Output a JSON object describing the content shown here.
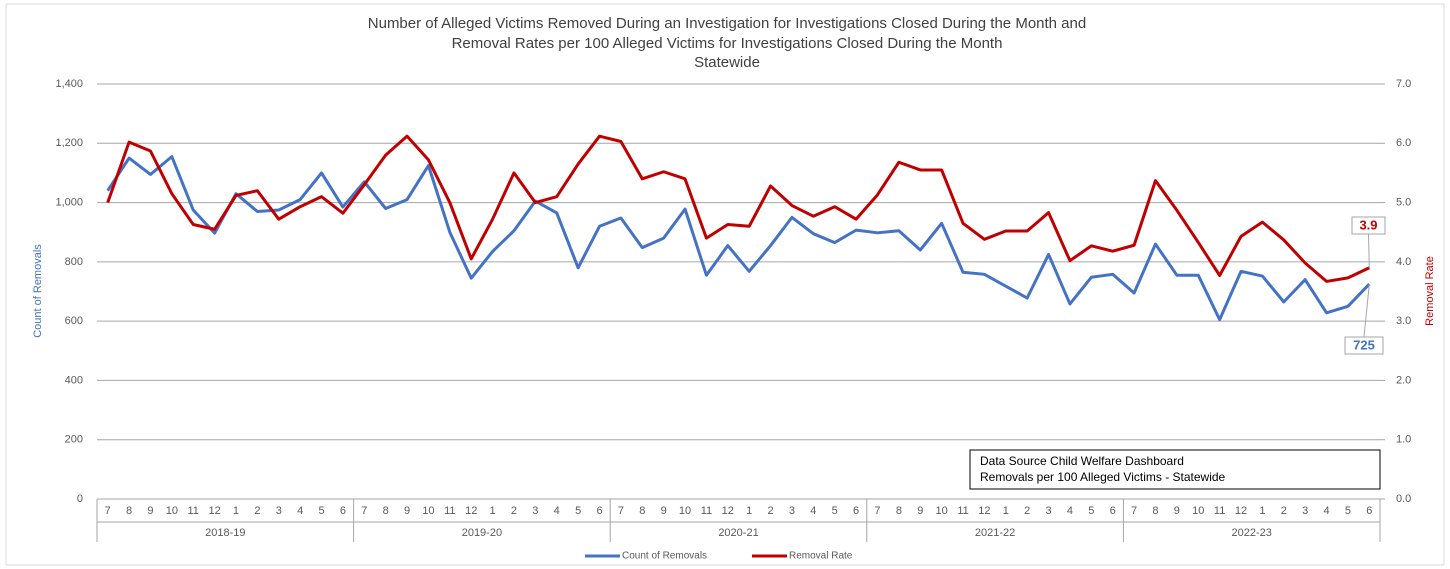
{
  "chart_data": {
    "type": "line",
    "title": [
      "Number of Alleged Victims Removed During an Investigation for Investigations Closed During the Month and",
      "Removal Rates per 100 Alleged Victims for Investigations Closed During the Month",
      "Statewide"
    ],
    "y_label": "Count of Removals",
    "y2_label": "Removal Rate",
    "categories": [
      "7",
      "8",
      "9",
      "10",
      "11",
      "12",
      "1",
      "2",
      "3",
      "4",
      "5",
      "6",
      "7",
      "8",
      "9",
      "10",
      "11",
      "12",
      "1",
      "2",
      "3",
      "4",
      "5",
      "6",
      "7",
      "8",
      "9",
      "10",
      "11",
      "12",
      "1",
      "2",
      "3",
      "4",
      "5",
      "6",
      "7",
      "8",
      "9",
      "10",
      "11",
      "12",
      "1",
      "2",
      "3",
      "4",
      "5",
      "6",
      "7",
      "8",
      "9",
      "10",
      "11",
      "12",
      "1",
      "2",
      "3",
      "4",
      "5",
      "6"
    ],
    "category_groups": [
      "2018-19",
      "2019-20",
      "2020-21",
      "2021-22",
      "2022-23"
    ],
    "series": [
      {
        "name": "Count of Removals",
        "color": "#4472c4",
        "axis": "y",
        "values": [
          1040,
          1150,
          1095,
          1155,
          975,
          897,
          1030,
          970,
          975,
          1010,
          1100,
          985,
          1070,
          980,
          1010,
          1125,
          900,
          745,
          835,
          905,
          1005,
          965,
          780,
          920,
          948,
          848,
          880,
          978,
          755,
          855,
          768,
          855,
          950,
          895,
          865,
          907,
          898,
          905,
          840,
          930,
          765,
          758,
          718,
          678,
          825,
          658,
          748,
          758,
          695,
          860,
          755,
          755,
          605,
          768,
          752,
          665,
          740,
          628,
          650,
          725
        ]
      },
      {
        "name": "Removal Rate",
        "color": "#c00000",
        "axis": "y2",
        "values": [
          5.0,
          6.02,
          5.87,
          5.15,
          4.63,
          4.55,
          5.12,
          5.2,
          4.72,
          4.93,
          5.1,
          4.82,
          5.3,
          5.8,
          6.12,
          5.72,
          5.0,
          4.05,
          4.72,
          5.5,
          5.0,
          5.1,
          5.65,
          6.12,
          6.03,
          5.4,
          5.52,
          5.4,
          4.4,
          4.63,
          4.6,
          5.28,
          4.95,
          4.77,
          4.93,
          4.72,
          5.13,
          5.68,
          5.55,
          5.55,
          4.65,
          4.38,
          4.52,
          4.52,
          4.83,
          4.02,
          4.27,
          4.18,
          4.28,
          5.37,
          4.87,
          4.33,
          3.77,
          4.43,
          4.67,
          4.37,
          3.98,
          3.67,
          3.73,
          3.9
        ]
      }
    ],
    "ylim": [
      0,
      1400
    ],
    "yticks": [
      0,
      200,
      400,
      600,
      800,
      {
        "value": 1000,
        "label": "1,000"
      },
      {
        "value": 1200,
        "label": "1,200"
      },
      {
        "value": 1400,
        "label": "1,400"
      }
    ],
    "y2lim": [
      0,
      7
    ],
    "y2ticks": [
      {
        "value": 0,
        "label": "0.0"
      },
      {
        "value": 1,
        "label": "1.0"
      },
      {
        "value": 2,
        "label": "2.0"
      },
      {
        "value": 3,
        "label": "3.0"
      },
      {
        "value": 4,
        "label": "4.0"
      },
      {
        "value": 5,
        "label": "5.0"
      },
      {
        "value": 6,
        "label": "6.0"
      },
      {
        "value": 7,
        "label": "7.0"
      }
    ],
    "grid": true,
    "legend": "bottom",
    "annotation": [
      "Data Source Child Welfare Dashboard",
      "Removals per 100 Alleged Victims - Statewide"
    ]
  }
}
